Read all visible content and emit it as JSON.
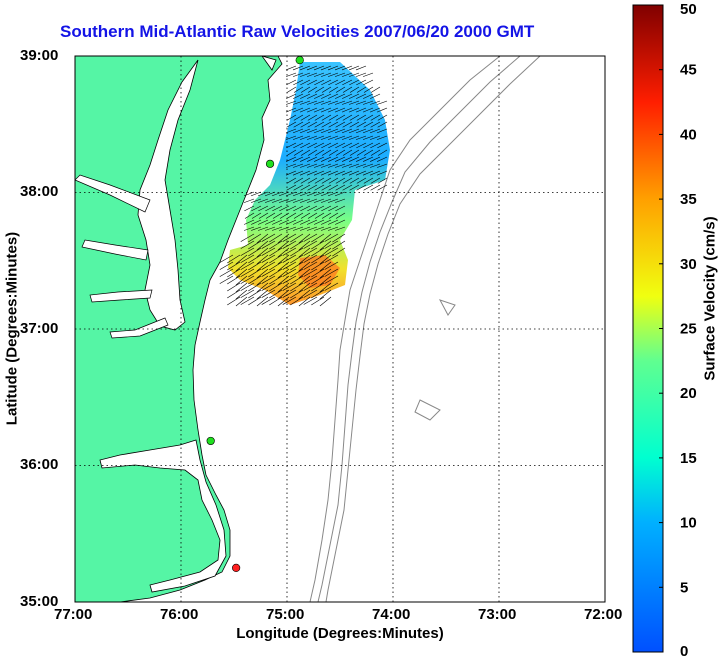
{
  "title": "Southern Mid-Atlantic Raw Velocities 2007/06/20 2000 GMT",
  "xlabel": "Longitude (Degrees:Minutes)",
  "ylabel": "Latitude (Degrees:Minutes)",
  "colorbar_label": "Surface Velocity (cm/s)",
  "colors": {
    "land": "#55f5a5",
    "title": "#1414e6",
    "contour": "#888888",
    "coast": "#000000"
  },
  "map": {
    "lon_range": [
      -77,
      -72
    ],
    "lat_range": [
      35,
      39
    ],
    "x_ticks": [
      "77:00",
      "76:00",
      "75:00",
      "74:00",
      "73:00",
      "72:00"
    ],
    "y_ticks": [
      "35:00",
      "36:00",
      "37:00",
      "38:00",
      "39:00"
    ],
    "stations": [
      {
        "lon": -74.88,
        "lat": 38.97,
        "color": "green"
      },
      {
        "lon": -75.16,
        "lat": 38.21,
        "color": "green"
      },
      {
        "lon": -75.72,
        "lat": 36.18,
        "color": "green"
      },
      {
        "lon": -75.48,
        "lat": 35.25,
        "color": "red"
      }
    ]
  },
  "colorbar": {
    "range": [
      0,
      50
    ],
    "ticks": [
      "0",
      "5",
      "10",
      "15",
      "20",
      "25",
      "30",
      "35",
      "40",
      "45",
      "50"
    ]
  }
}
